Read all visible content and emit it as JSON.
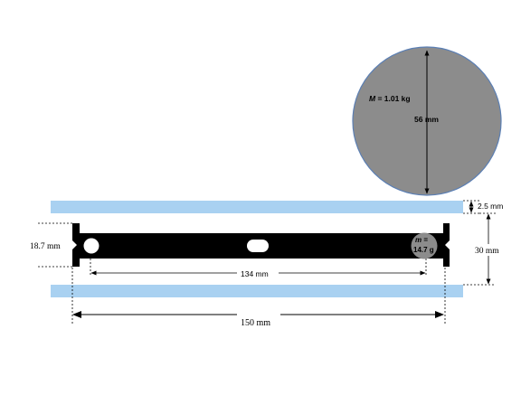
{
  "big_disk": {
    "mass_label": "M = 1.01 kg",
    "mass_symbol": "M",
    "mass_value": " = 1.01 kg",
    "diameter_label": "56 mm",
    "fill": "#8c8c8c",
    "stroke": "#5b7fb4"
  },
  "small_mass": {
    "label_line1": "m =",
    "label_symbol": "m",
    "label_eq": " =",
    "label_line2": "14.7 g",
    "fill": "#8c8c8c"
  },
  "dimensions": {
    "gap": "2.5 mm",
    "height_right": "30 mm",
    "height_left": "18.7 mm",
    "inner_span": "134 mm",
    "outer_span": "150 mm"
  },
  "colors": {
    "glass": "#a9d1f1",
    "bar": "#000000",
    "line": "#000000"
  }
}
